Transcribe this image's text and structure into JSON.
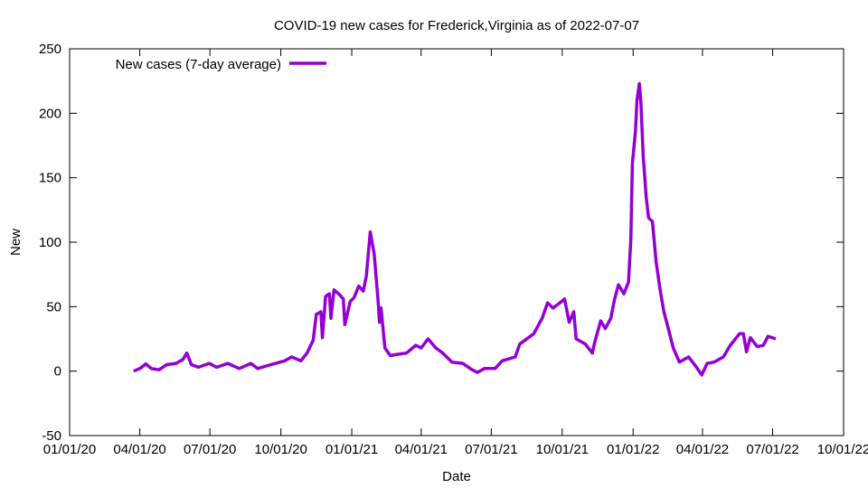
{
  "chart_data": {
    "type": "line",
    "title": "COVID-19 new cases for Frederick,Virginia as of 2022-07-07",
    "xlabel": "Date",
    "ylabel": "New",
    "xlim": [
      "2020-01-01",
      "2022-10-01"
    ],
    "ylim": [
      -50,
      250
    ],
    "x_ticks": [
      "01/01/20",
      "04/01/20",
      "07/01/20",
      "10/01/20",
      "01/01/21",
      "04/01/21",
      "07/01/21",
      "10/01/21",
      "01/01/22",
      "04/01/22",
      "07/01/22",
      "10/01/22"
    ],
    "x_tick_dates": [
      "2020-01-01",
      "2020-04-01",
      "2020-07-01",
      "2020-10-01",
      "2021-01-01",
      "2021-04-01",
      "2021-07-01",
      "2021-10-01",
      "2022-01-01",
      "2022-04-01",
      "2022-07-01",
      "2022-10-01"
    ],
    "y_ticks": [
      -50,
      0,
      50,
      100,
      150,
      200,
      250
    ],
    "grid": false,
    "legend_position": "top-left",
    "series": [
      {
        "name": "New cases (7-day average)",
        "color": "#9400d3",
        "points": [
          [
            "2020-03-24",
            0
          ],
          [
            "2020-04-01",
            2
          ],
          [
            "2020-04-09",
            5.6
          ],
          [
            "2020-04-16",
            2
          ],
          [
            "2020-04-26",
            1
          ],
          [
            "2020-05-06",
            5
          ],
          [
            "2020-05-18",
            6
          ],
          [
            "2020-05-27",
            9
          ],
          [
            "2020-06-01",
            14
          ],
          [
            "2020-06-07",
            5
          ],
          [
            "2020-06-16",
            3
          ],
          [
            "2020-06-30",
            6
          ],
          [
            "2020-07-10",
            3
          ],
          [
            "2020-07-24",
            6
          ],
          [
            "2020-08-08",
            2
          ],
          [
            "2020-08-23",
            6
          ],
          [
            "2020-09-01",
            2
          ],
          [
            "2020-09-18",
            5
          ],
          [
            "2020-10-06",
            8
          ],
          [
            "2020-10-15",
            11
          ],
          [
            "2020-10-27",
            8
          ],
          [
            "2020-11-04",
            14
          ],
          [
            "2020-11-12",
            24
          ],
          [
            "2020-11-16",
            44
          ],
          [
            "2020-11-22",
            46
          ],
          [
            "2020-11-24",
            26
          ],
          [
            "2020-11-28",
            58
          ],
          [
            "2020-12-03",
            60
          ],
          [
            "2020-12-05",
            41
          ],
          [
            "2020-12-09",
            63
          ],
          [
            "2020-12-15",
            60
          ],
          [
            "2020-12-21",
            56
          ],
          [
            "2020-12-23",
            36
          ],
          [
            "2020-12-30",
            54
          ],
          [
            "2021-01-04",
            57
          ],
          [
            "2021-01-10",
            66
          ],
          [
            "2021-01-16",
            62
          ],
          [
            "2021-01-20",
            74
          ],
          [
            "2021-01-25",
            108
          ],
          [
            "2021-01-30",
            91
          ],
          [
            "2021-02-04",
            56
          ],
          [
            "2021-02-06",
            38
          ],
          [
            "2021-02-08",
            49
          ],
          [
            "2021-02-13",
            18
          ],
          [
            "2021-02-20",
            12
          ],
          [
            "2021-03-01",
            13
          ],
          [
            "2021-03-13",
            14
          ],
          [
            "2021-03-25",
            20
          ],
          [
            "2021-04-01",
            18
          ],
          [
            "2021-04-10",
            25
          ],
          [
            "2021-04-20",
            18
          ],
          [
            "2021-04-29",
            14
          ],
          [
            "2021-05-11",
            7
          ],
          [
            "2021-05-25",
            6
          ],
          [
            "2021-06-06",
            1
          ],
          [
            "2021-06-13",
            -1
          ],
          [
            "2021-06-22",
            2
          ],
          [
            "2021-07-06",
            2
          ],
          [
            "2021-07-15",
            8
          ],
          [
            "2021-08-01",
            11
          ],
          [
            "2021-08-07",
            21
          ],
          [
            "2021-08-25",
            29
          ],
          [
            "2021-09-05",
            41
          ],
          [
            "2021-09-12",
            53
          ],
          [
            "2021-09-19",
            49
          ],
          [
            "2021-09-28",
            53
          ],
          [
            "2021-10-04",
            56
          ],
          [
            "2021-10-10",
            38
          ],
          [
            "2021-10-16",
            46
          ],
          [
            "2021-10-19",
            25
          ],
          [
            "2021-10-31",
            21
          ],
          [
            "2021-11-09",
            14
          ],
          [
            "2021-11-12",
            22
          ],
          [
            "2021-11-20",
            39
          ],
          [
            "2021-11-26",
            33
          ],
          [
            "2021-12-03",
            41
          ],
          [
            "2021-12-08",
            56
          ],
          [
            "2021-12-13",
            67
          ],
          [
            "2021-12-20",
            60
          ],
          [
            "2021-12-26",
            69
          ],
          [
            "2021-12-29",
            102
          ],
          [
            "2021-12-31",
            161
          ],
          [
            "2022-01-04",
            186
          ],
          [
            "2022-01-06",
            210
          ],
          [
            "2022-01-09",
            223
          ],
          [
            "2022-01-11",
            209
          ],
          [
            "2022-01-14",
            168
          ],
          [
            "2022-01-18",
            135
          ],
          [
            "2022-01-21",
            119
          ],
          [
            "2022-01-26",
            116
          ],
          [
            "2022-01-31",
            84
          ],
          [
            "2022-02-05",
            63
          ],
          [
            "2022-02-10",
            46
          ],
          [
            "2022-02-16",
            32
          ],
          [
            "2022-02-22",
            18
          ],
          [
            "2022-03-02",
            7
          ],
          [
            "2022-03-14",
            11
          ],
          [
            "2022-03-23",
            4
          ],
          [
            "2022-03-31",
            -3
          ],
          [
            "2022-04-07",
            6
          ],
          [
            "2022-04-16",
            7
          ],
          [
            "2022-04-28",
            11
          ],
          [
            "2022-05-07",
            20
          ],
          [
            "2022-05-19",
            29
          ],
          [
            "2022-05-24",
            29
          ],
          [
            "2022-05-28",
            15
          ],
          [
            "2022-06-02",
            26
          ],
          [
            "2022-06-11",
            19
          ],
          [
            "2022-06-19",
            20
          ],
          [
            "2022-06-25",
            27
          ],
          [
            "2022-07-05",
            25
          ]
        ]
      }
    ]
  }
}
